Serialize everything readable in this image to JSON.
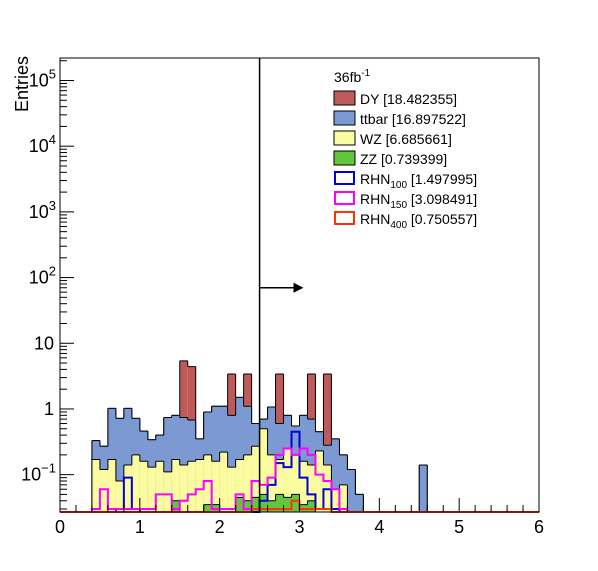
{
  "chart_data": {
    "type": "histogram-stacked",
    "ylabel": "Entries",
    "xlim": [
      0,
      6
    ],
    "ylog": true,
    "ylim": [
      0.027,
      220000
    ],
    "x_ticks": [
      "0",
      "1",
      "2",
      "3",
      "4",
      "5",
      "6"
    ],
    "y_ticks": [
      {
        "value": 0.1,
        "base": "10",
        "exp": "−1"
      },
      {
        "value": 1,
        "base": "1",
        "exp": ""
      },
      {
        "value": 10,
        "base": "10",
        "exp": ""
      },
      {
        "value": 100,
        "base": "10",
        "exp": "2"
      },
      {
        "value": 1000,
        "base": "10",
        "exp": "3"
      },
      {
        "value": 10000,
        "base": "10",
        "exp": "4"
      },
      {
        "value": 100000,
        "base": "10",
        "exp": "5"
      }
    ],
    "bin_width": 0.1,
    "x_start": 0,
    "cut": {
      "x": 2.5,
      "arrow_to": 3.05,
      "arrow_y": 70
    },
    "legend": {
      "header": {
        "text": "36fb",
        "sup": "-1"
      },
      "entries": [
        {
          "name": "DY",
          "sub": "",
          "value": "[18.482355]",
          "style": "fill",
          "color": "#c05a5a"
        },
        {
          "name": "ttbar",
          "sub": "",
          "value": "[16.897522]",
          "style": "fill",
          "color": "#7b9ad4"
        },
        {
          "name": "WZ",
          "sub": "",
          "value": "[6.685661]",
          "style": "fill",
          "color": "#fbfca0"
        },
        {
          "name": "ZZ",
          "sub": "",
          "value": "[0.739399]",
          "style": "fill",
          "color": "#63c53d"
        },
        {
          "name": "RHN",
          "sub": "100",
          "value": "[1.497995]",
          "style": "line",
          "color": "#0000d8"
        },
        {
          "name": "RHN",
          "sub": "150",
          "value": "[3.098491]",
          "style": "line",
          "color": "#ff00ff"
        },
        {
          "name": "RHN",
          "sub": "400",
          "value": "[0.750557]",
          "style": "line",
          "color": "#ff3300"
        }
      ]
    },
    "stacks": [
      {
        "name": "ZZ",
        "color": "#63c53d",
        "cumulative": [
          0,
          0,
          0,
          0,
          0,
          0,
          0,
          0,
          0,
          0,
          0,
          0,
          0,
          0,
          0.04,
          0,
          0,
          0,
          0.035,
          0.035,
          0,
          0,
          0.045,
          0.04,
          0.045,
          0.05,
          0.04,
          0.05,
          0.045,
          0.05,
          0.035,
          0.04,
          0,
          0,
          0,
          0,
          0,
          0,
          0,
          0,
          0,
          0,
          0,
          0,
          0,
          0,
          0,
          0,
          0,
          0,
          0,
          0,
          0,
          0,
          0,
          0,
          0,
          0,
          0,
          0
        ]
      },
      {
        "name": "WZ",
        "color": "#fbfca0",
        "cumulative": [
          0,
          0,
          0,
          0,
          0.17,
          0.12,
          0.17,
          0.08,
          0.14,
          0.2,
          0.16,
          0.13,
          0.16,
          0.11,
          0.17,
          0.14,
          0.16,
          0.17,
          0.2,
          0.16,
          0.22,
          0.13,
          0.17,
          0.2,
          0.27,
          0.5,
          0.2,
          0.17,
          0.25,
          0.2,
          0.16,
          0.14,
          0.23,
          0.14,
          0.06,
          0.07,
          0,
          0,
          0,
          0,
          0,
          0,
          0,
          0,
          0,
          0,
          0,
          0,
          0,
          0,
          0,
          0,
          0,
          0,
          0,
          0,
          0,
          0,
          0,
          0
        ]
      },
      {
        "name": "ttbar",
        "color": "#7b9ad4",
        "cumulative": [
          0,
          0,
          0,
          0,
          0.33,
          0.27,
          1.02,
          0.72,
          1.02,
          0.72,
          0.46,
          0.34,
          0.4,
          0.74,
          0.8,
          0.74,
          0.68,
          0.35,
          0.9,
          1.1,
          1.1,
          0.8,
          1.5,
          1.1,
          0.6,
          0.7,
          1.07,
          0.6,
          0.8,
          0.55,
          0.8,
          0.7,
          0.45,
          0.28,
          0.35,
          0.2,
          0.12,
          0.05,
          0,
          0,
          0,
          0,
          0,
          0,
          0,
          0.14,
          0,
          0,
          0,
          0,
          0,
          0,
          0,
          0,
          0,
          0,
          0,
          0,
          0,
          0
        ]
      },
      {
        "name": "DY",
        "color": "#c05a5a",
        "cumulative": [
          0,
          0,
          0,
          0,
          0.33,
          0.27,
          1.02,
          0.72,
          1.02,
          0.72,
          0.46,
          0.34,
          0.4,
          0.74,
          0.8,
          5.4,
          4.4,
          0.35,
          0.9,
          1.1,
          1.1,
          3.4,
          1.5,
          3.4,
          0.6,
          0.7,
          1.07,
          3.4,
          0.8,
          0.55,
          0.8,
          3.4,
          0.45,
          3.4,
          0.35,
          0.2,
          0.12,
          0.05,
          0,
          0,
          0,
          0,
          0,
          0,
          0,
          0.14,
          0,
          0,
          0,
          0,
          0,
          0,
          0,
          0,
          0,
          0,
          0,
          0,
          0,
          0
        ]
      }
    ],
    "lines": [
      {
        "name": "RHN_100",
        "color": "#0000d8",
        "values": [
          0,
          0,
          0,
          0,
          0,
          0,
          0,
          0.03,
          0.09,
          0.03,
          0,
          0,
          0,
          0,
          0,
          0,
          0,
          0,
          0,
          0,
          0,
          0,
          0,
          0,
          0,
          0.04,
          0.07,
          0.15,
          0.13,
          0.45,
          0.09,
          0.05,
          0.03,
          0.06,
          0.03,
          0,
          0,
          0,
          0,
          0,
          0,
          0,
          0,
          0,
          0,
          0,
          0,
          0,
          0,
          0,
          0,
          0,
          0,
          0,
          0,
          0,
          0,
          0,
          0,
          0
        ]
      },
      {
        "name": "RHN_150",
        "color": "#ff00ff",
        "values": [
          0,
          0,
          0,
          0,
          0.03,
          0.06,
          0.03,
          0.03,
          0.03,
          0.03,
          0.03,
          0.03,
          0.05,
          0.05,
          0.03,
          0.04,
          0.05,
          0.06,
          0.08,
          0.03,
          0.03,
          0.03,
          0.05,
          0.03,
          0.08,
          0.07,
          0.09,
          0.2,
          0.25,
          0.2,
          0.25,
          0.2,
          0.1,
          0.08,
          0.06,
          0.03,
          0,
          0,
          0,
          0,
          0,
          0,
          0,
          0,
          0,
          0,
          0,
          0,
          0,
          0,
          0,
          0,
          0,
          0,
          0,
          0,
          0,
          0,
          0,
          0
        ]
      },
      {
        "name": "RHN_400",
        "color": "#ff3300",
        "values": [
          0,
          0,
          0,
          0,
          0,
          0,
          0,
          0,
          0,
          0,
          0,
          0,
          0,
          0,
          0,
          0,
          0,
          0,
          0,
          0,
          0,
          0,
          0,
          0,
          0.03,
          0.03,
          0.03,
          0.03,
          0.03,
          0.04,
          0.03,
          0.03,
          0.03,
          0.03,
          0,
          0,
          0,
          0,
          0,
          0,
          0,
          0,
          0,
          0,
          0,
          0,
          0,
          0,
          0,
          0,
          0,
          0,
          0,
          0,
          0,
          0,
          0,
          0,
          0,
          0
        ]
      }
    ]
  }
}
